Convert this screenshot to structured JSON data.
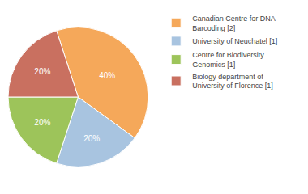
{
  "chart_data": {
    "type": "pie",
    "categories": [
      "Canadian Centre for DNA\nBarcoding [2]",
      "University of Neuchatel [1]",
      "Centre for Biodiversity\nGenomics [1]",
      "Biology department of\nUniversity of Florence [1]"
    ],
    "values": [
      40,
      20,
      20,
      20
    ],
    "value_labels": [
      "40%",
      "20%",
      "20%",
      "20%"
    ],
    "colors": [
      "#F5A85A",
      "#A8C4E0",
      "#9DC45A",
      "#C97060"
    ],
    "data_labels": true,
    "legend": "upper right"
  }
}
